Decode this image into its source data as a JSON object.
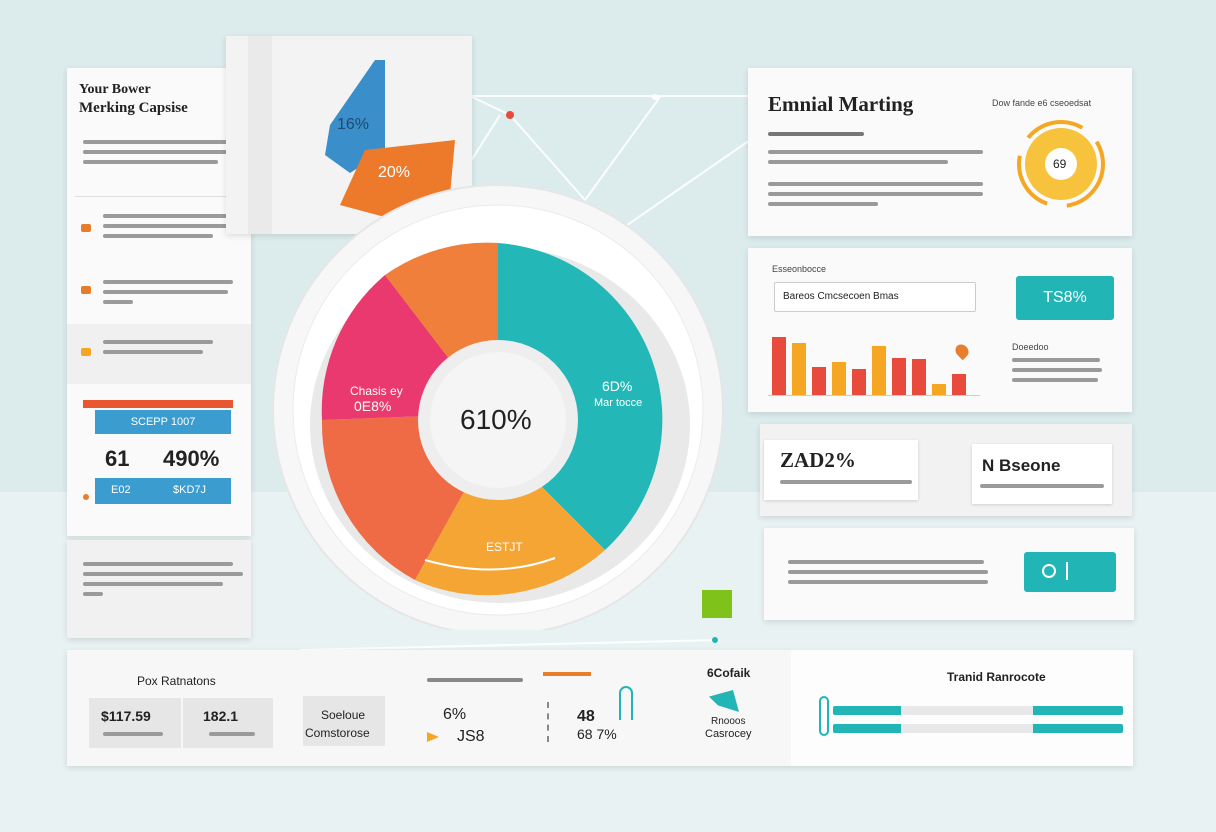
{
  "left_panel": {
    "title_line1": "Your Bower",
    "title_line2": "Merking Capsise",
    "cta_label": "SCEPP 1007",
    "stat_a": "61",
    "stat_b": "490%",
    "footer_a": "E02",
    "footer_b": "$KD7J"
  },
  "top_tile": {
    "tag_blue": "16%",
    "tag_orange": "20%"
  },
  "donut": {
    "center_value": "610%",
    "left_label_1": "Chasis ey",
    "left_label_2": "0E8%",
    "right_label_1": "6D%",
    "right_label_2": "Mar tocce",
    "bottom_label": "ESTJT"
  },
  "email_panel": {
    "title": "Emnial Marting",
    "header_right": "Dow fande e6 cseoedsat",
    "avatar_text": "69"
  },
  "chart_panel": {
    "header": "Esseonbocce",
    "search_text": "Bareos Cmcsecoen Bmas",
    "badge": "TS8%",
    "right_head": "Doeedoo",
    "bar_values": [
      62,
      55,
      30,
      35,
      28,
      52,
      40,
      38,
      12,
      22
    ],
    "bar_colors": [
      "#e84a3c",
      "#f5a623",
      "#e84a3c",
      "#f5a623",
      "#e84a3c",
      "#f5a623",
      "#e84a3c",
      "#e84a3c",
      "#f5a623",
      "#e84a3c"
    ]
  },
  "stats_panel": {
    "card_a_value": "ZAD2%",
    "card_b_value": "N Bseone"
  },
  "bottom_bar": {
    "heading_1": "Pox Ratnatons",
    "value_1": "$117.59",
    "value_2": "182.1",
    "label_3": "Soeloue",
    "label_3b": "Comstorose",
    "value_4": "6%",
    "value_4b": "JS8",
    "value_5": "48",
    "value_5b": "68 7%",
    "heading_6": "6Cofaik",
    "label_6": "Rnooos",
    "label_6b": "Casrocey",
    "heading_7": "Tranid Ranrocote"
  }
}
